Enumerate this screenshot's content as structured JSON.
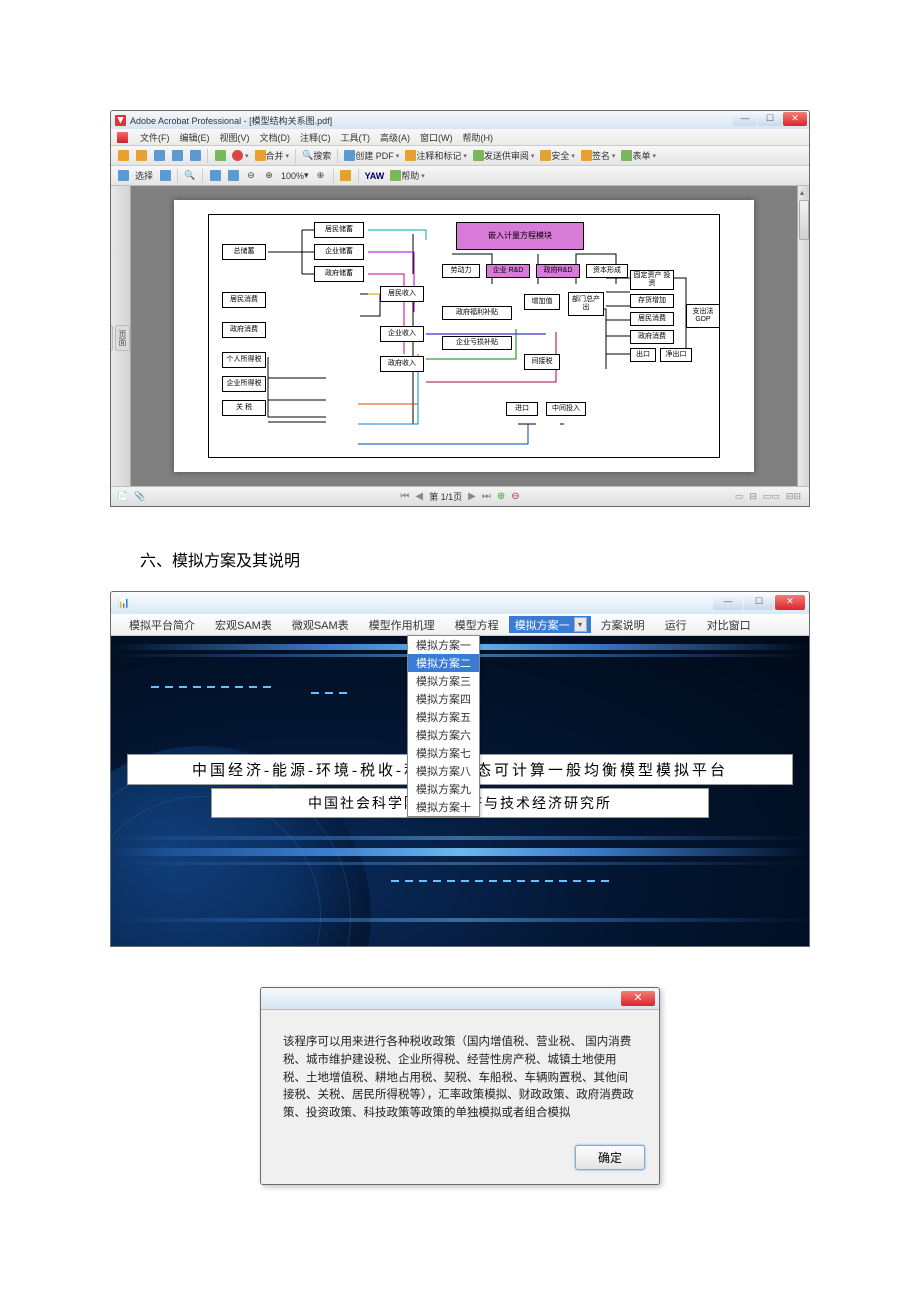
{
  "acrobat": {
    "title": "Adobe Acrobat Professional - [模型结构关系图.pdf]",
    "menu": [
      "文件(F)",
      "编辑(E)",
      "视图(V)",
      "文档(D)",
      "注释(C)",
      "工具(T)",
      "高级(A)",
      "窗口(W)",
      "帮助(H)"
    ],
    "tb": {
      "combine": "合并",
      "search": "搜索",
      "createpdf": "创建 PDF",
      "comment": "注释和标记",
      "review": "发送供审阅",
      "secure": "安全",
      "sign": "签名",
      "forms": "表单",
      "select": "选择",
      "zoom": "100%",
      "yaw": "YAW",
      "help": "帮助"
    },
    "sidetabs": [
      "页面",
      "书签",
      "附件"
    ],
    "sidetabs2": [
      "注释",
      "签名"
    ],
    "page": "第 1/1页",
    "diagram": {
      "input_module": "嵌入计量方程模块",
      "boxes": {
        "zchux": "总储蓄",
        "jmchux": "居民储蓄",
        "qychux": "企业储蓄",
        "zfchux": "政府储蓄",
        "jmxf": "居民消费",
        "zfxf": "政府消费",
        "grsds": "个人所得税",
        "qysds": "企业所得税",
        "guanshui": "关 税",
        "jmsr": "居民收入",
        "qysr": "企业收入",
        "zfsr": "政府收入",
        "ldl": "劳动力",
        "qyrd": "企业 R&D",
        "zfrd": "政府R&D",
        "zbxc": "资本形成",
        "zfflbt": "政府福利补贴",
        "qykssb": "企业亏损补贴",
        "zjz": "增加值",
        "bmmcc": "部门总产出",
        "jjs": "间接税",
        "jk": "进口",
        "zjsr": "中间投入",
        "gdzctz": "固定资产\n投资",
        "chzj": "存货增加",
        "jmxf2": "居民消费",
        "zfxf2": "政府消费",
        "ck": "出口",
        "jck": "净出口",
        "gdp": "支出法\nGDP"
      }
    }
  },
  "heading": "六、模拟方案及其说明",
  "platform": {
    "menu": [
      "模拟平台简介",
      "宏观SAM表",
      "微观SAM表",
      "模型作用机理",
      "模型方程"
    ],
    "combo": "模拟方案一",
    "menu_after": [
      "方案说明",
      "运行",
      "对比窗口"
    ],
    "dropdown": [
      "模拟方案一",
      "模拟方案二",
      "模拟方案三",
      "模拟方案四",
      "模拟方案五",
      "模拟方案六",
      "模拟方案七",
      "模拟方案八",
      "模拟方案九",
      "模拟方案十"
    ],
    "dropdown_selected_index": 1,
    "banner1": "中国经济-能源-环境-税收-利　　　态可计算一般均衡模型模拟平台",
    "banner2": "中国社会科学院数量经济与技术经济研究所"
  },
  "dialog": {
    "text": "该程序可以用来进行各种税收政策（国内增值税、营业税、 国内消费税、城市维护建设税、企业所得税、经营性房产税、城镇土地使用税、土地增值税、耕地占用税、契税、车船税、车辆购置税、其他间接税、关税、居民所得税等），汇率政策模拟、财政政策、政府消费政策、投资政策、科技政策等政策的单独模拟或者组合模拟",
    "ok": "确定"
  }
}
